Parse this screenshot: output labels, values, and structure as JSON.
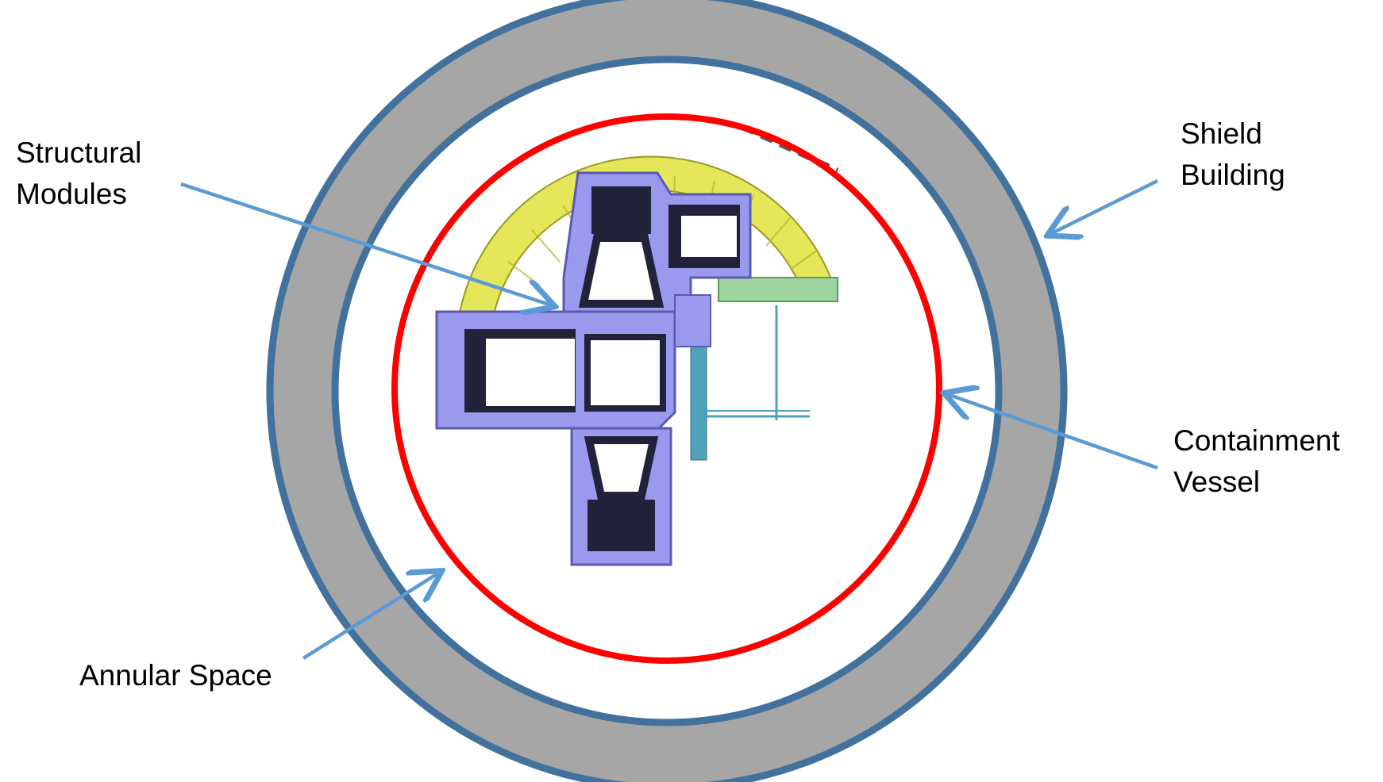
{
  "labels": {
    "structural_modules": [
      "Structural",
      "Modules"
    ],
    "shield_building": [
      "Shield",
      "Building"
    ],
    "containment_vessel": [
      "Containment",
      "Vessel"
    ],
    "annular_space": "Annular Space"
  },
  "colors": {
    "shield_ring_fill": "#a6a6a6",
    "shield_ring_stroke": "#41719c",
    "containment_vessel": "#ff0000",
    "arrow": "#5b9bd5",
    "module_fill": "#9999ee",
    "module_dark": "#22223a",
    "polar_crane_yellow": "#e6e65a",
    "piping_cyan": "#4fa3b8",
    "platform_green": "#9ed59e"
  },
  "icons": {
    "arrow": "arrow-icon"
  }
}
